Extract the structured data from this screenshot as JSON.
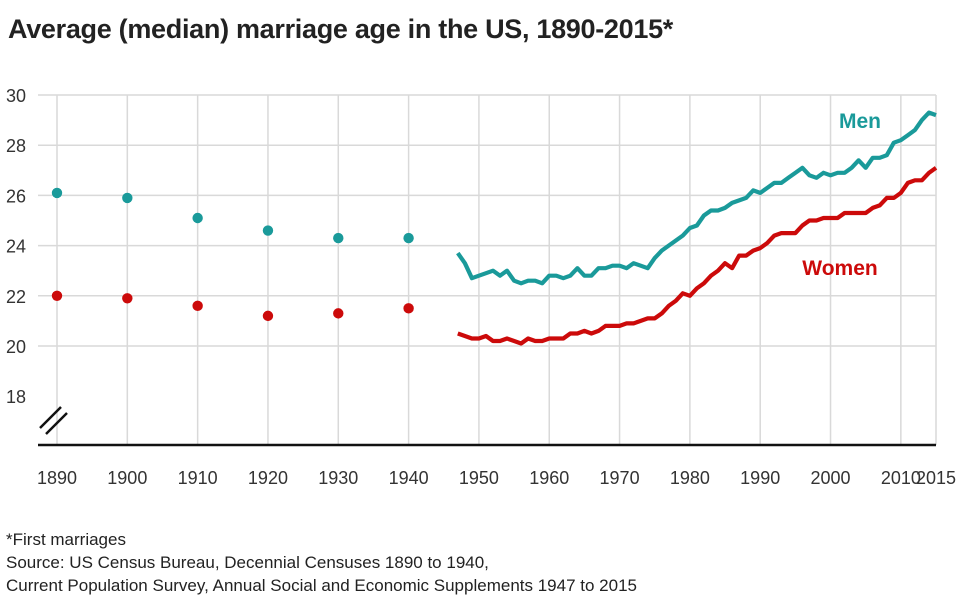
{
  "title": "Average (median) marriage age in the US, 1890-2015*",
  "footnote": "*First marriages",
  "source_line1": "Source: US Census Bureau, Decennial Censuses 1890 to 1940,",
  "source_line2": "Current Population Survey, Annual Social and Economic Supplements 1947 to 2015",
  "chart_data": {
    "type": "line",
    "xlim": [
      1890,
      2015
    ],
    "ylim": [
      18,
      30
    ],
    "x_ticks": [
      1890,
      1900,
      1910,
      1920,
      1930,
      1940,
      1950,
      1960,
      1970,
      1980,
      1990,
      2000,
      2010,
      2015
    ],
    "y_ticks": [
      18,
      20,
      22,
      24,
      26,
      28,
      30
    ],
    "grid": true,
    "axis_break": true,
    "series": [
      {
        "name": "Men",
        "color": "#1a9a9a",
        "points": [
          [
            1890,
            26.1
          ],
          [
            1900,
            25.9
          ],
          [
            1910,
            25.1
          ],
          [
            1920,
            24.6
          ],
          [
            1930,
            24.3
          ],
          [
            1940,
            24.3
          ]
        ],
        "line": [
          [
            1947,
            23.7
          ],
          [
            1948,
            23.3
          ],
          [
            1949,
            22.7
          ],
          [
            1950,
            22.8
          ],
          [
            1951,
            22.9
          ],
          [
            1952,
            23.0
          ],
          [
            1953,
            22.8
          ],
          [
            1954,
            23.0
          ],
          [
            1955,
            22.6
          ],
          [
            1956,
            22.5
          ],
          [
            1957,
            22.6
          ],
          [
            1958,
            22.6
          ],
          [
            1959,
            22.5
          ],
          [
            1960,
            22.8
          ],
          [
            1961,
            22.8
          ],
          [
            1962,
            22.7
          ],
          [
            1963,
            22.8
          ],
          [
            1964,
            23.1
          ],
          [
            1965,
            22.8
          ],
          [
            1966,
            22.8
          ],
          [
            1967,
            23.1
          ],
          [
            1968,
            23.1
          ],
          [
            1969,
            23.2
          ],
          [
            1970,
            23.2
          ],
          [
            1971,
            23.1
          ],
          [
            1972,
            23.3
          ],
          [
            1973,
            23.2
          ],
          [
            1974,
            23.1
          ],
          [
            1975,
            23.5
          ],
          [
            1976,
            23.8
          ],
          [
            1977,
            24.0
          ],
          [
            1978,
            24.2
          ],
          [
            1979,
            24.4
          ],
          [
            1980,
            24.7
          ],
          [
            1981,
            24.8
          ],
          [
            1982,
            25.2
          ],
          [
            1983,
            25.4
          ],
          [
            1984,
            25.4
          ],
          [
            1985,
            25.5
          ],
          [
            1986,
            25.7
          ],
          [
            1987,
            25.8
          ],
          [
            1988,
            25.9
          ],
          [
            1989,
            26.2
          ],
          [
            1990,
            26.1
          ],
          [
            1991,
            26.3
          ],
          [
            1992,
            26.5
          ],
          [
            1993,
            26.5
          ],
          [
            1994,
            26.7
          ],
          [
            1995,
            26.9
          ],
          [
            1996,
            27.1
          ],
          [
            1997,
            26.8
          ],
          [
            1998,
            26.7
          ],
          [
            1999,
            26.9
          ],
          [
            2000,
            26.8
          ],
          [
            2001,
            26.9
          ],
          [
            2002,
            26.9
          ],
          [
            2003,
            27.1
          ],
          [
            2004,
            27.4
          ],
          [
            2005,
            27.1
          ],
          [
            2006,
            27.5
          ],
          [
            2007,
            27.5
          ],
          [
            2008,
            27.6
          ],
          [
            2009,
            28.1
          ],
          [
            2010,
            28.2
          ],
          [
            2011,
            28.4
          ],
          [
            2012,
            28.6
          ],
          [
            2013,
            29.0
          ],
          [
            2014,
            29.3
          ],
          [
            2015,
            29.2
          ]
        ],
        "label": "Men"
      },
      {
        "name": "Women",
        "color": "#cc0a0a",
        "points": [
          [
            1890,
            22.0
          ],
          [
            1900,
            21.9
          ],
          [
            1910,
            21.6
          ],
          [
            1920,
            21.2
          ],
          [
            1930,
            21.3
          ],
          [
            1940,
            21.5
          ]
        ],
        "line": [
          [
            1947,
            20.5
          ],
          [
            1948,
            20.4
          ],
          [
            1949,
            20.3
          ],
          [
            1950,
            20.3
          ],
          [
            1951,
            20.4
          ],
          [
            1952,
            20.2
          ],
          [
            1953,
            20.2
          ],
          [
            1954,
            20.3
          ],
          [
            1955,
            20.2
          ],
          [
            1956,
            20.1
          ],
          [
            1957,
            20.3
          ],
          [
            1958,
            20.2
          ],
          [
            1959,
            20.2
          ],
          [
            1960,
            20.3
          ],
          [
            1961,
            20.3
          ],
          [
            1962,
            20.3
          ],
          [
            1963,
            20.5
          ],
          [
            1964,
            20.5
          ],
          [
            1965,
            20.6
          ],
          [
            1966,
            20.5
          ],
          [
            1967,
            20.6
          ],
          [
            1968,
            20.8
          ],
          [
            1969,
            20.8
          ],
          [
            1970,
            20.8
          ],
          [
            1971,
            20.9
          ],
          [
            1972,
            20.9
          ],
          [
            1973,
            21.0
          ],
          [
            1974,
            21.1
          ],
          [
            1975,
            21.1
          ],
          [
            1976,
            21.3
          ],
          [
            1977,
            21.6
          ],
          [
            1978,
            21.8
          ],
          [
            1979,
            22.1
          ],
          [
            1980,
            22.0
          ],
          [
            1981,
            22.3
          ],
          [
            1982,
            22.5
          ],
          [
            1983,
            22.8
          ],
          [
            1984,
            23.0
          ],
          [
            1985,
            23.3
          ],
          [
            1986,
            23.1
          ],
          [
            1987,
            23.6
          ],
          [
            1988,
            23.6
          ],
          [
            1989,
            23.8
          ],
          [
            1990,
            23.9
          ],
          [
            1991,
            24.1
          ],
          [
            1992,
            24.4
          ],
          [
            1993,
            24.5
          ],
          [
            1994,
            24.5
          ],
          [
            1995,
            24.5
          ],
          [
            1996,
            24.8
          ],
          [
            1997,
            25.0
          ],
          [
            1998,
            25.0
          ],
          [
            1999,
            25.1
          ],
          [
            2000,
            25.1
          ],
          [
            2001,
            25.1
          ],
          [
            2002,
            25.3
          ],
          [
            2003,
            25.3
          ],
          [
            2004,
            25.3
          ],
          [
            2005,
            25.3
          ],
          [
            2006,
            25.5
          ],
          [
            2007,
            25.6
          ],
          [
            2008,
            25.9
          ],
          [
            2009,
            25.9
          ],
          [
            2010,
            26.1
          ],
          [
            2011,
            26.5
          ],
          [
            2012,
            26.6
          ],
          [
            2013,
            26.6
          ],
          [
            2014,
            26.9
          ],
          [
            2015,
            27.1
          ]
        ],
        "label": "Women"
      }
    ]
  }
}
